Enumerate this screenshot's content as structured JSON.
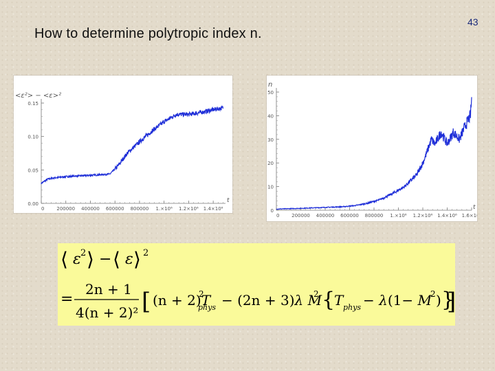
{
  "slide": {
    "title": "How to determine  polytropic index n.",
    "page_number": "43"
  },
  "colors": {
    "background": "#e3dbcb",
    "curve": "#1f2fd8",
    "formula_bg": "#fafa9a",
    "page_number": "#1a2a7a"
  },
  "chart_data": [
    {
      "type": "line",
      "title": "",
      "ylabel": "<ε²> − <ε>²",
      "xlabel": "t",
      "xlim": [
        0,
        1500000
      ],
      "ylim": [
        0,
        0.15
      ],
      "x_tick_labels": [
        "0",
        "200000",
        "400000",
        "600000",
        "800000",
        "1.×10⁶",
        "1.2×10⁶",
        "1.4×10⁶"
      ],
      "y_tick_labels": [
        "0.00",
        "0.05",
        "0.10",
        "0.15"
      ],
      "series": [
        {
          "points": [
            [
              0,
              0.03
            ],
            [
              50000,
              0.036
            ],
            [
              100000,
              0.038
            ],
            [
              200000,
              0.04
            ],
            [
              300000,
              0.041
            ],
            [
              400000,
              0.042
            ],
            [
              500000,
              0.043
            ],
            [
              560000,
              0.044
            ],
            [
              620000,
              0.055
            ],
            [
              700000,
              0.075
            ],
            [
              800000,
              0.092
            ],
            [
              900000,
              0.108
            ],
            [
              1000000,
              0.122
            ],
            [
              1100000,
              0.133
            ],
            [
              1200000,
              0.133
            ],
            [
              1300000,
              0.136
            ],
            [
              1400000,
              0.14
            ],
            [
              1480000,
              0.143
            ]
          ]
        }
      ]
    },
    {
      "type": "line",
      "title": "",
      "ylabel": "n",
      "xlabel": "t",
      "xlim": [
        0,
        1600000
      ],
      "ylim": [
        0,
        50
      ],
      "x_tick_labels": [
        "0",
        "200000",
        "400000",
        "600000",
        "800000",
        "1.×10⁶",
        "1.2×10⁶",
        "1.4×10⁶",
        "1.6×10⁶"
      ],
      "y_tick_labels": [
        "0",
        "10",
        "20",
        "30",
        "40",
        "50"
      ],
      "series": [
        {
          "points": [
            [
              0,
              0.5
            ],
            [
              200000,
              0.8
            ],
            [
              400000,
              1.2
            ],
            [
              550000,
              1.5
            ],
            [
              650000,
              2.0
            ],
            [
              750000,
              3.0
            ],
            [
              850000,
              4.5
            ],
            [
              950000,
              7.0
            ],
            [
              1050000,
              10.0
            ],
            [
              1150000,
              15.0
            ],
            [
              1200000,
              20.0
            ],
            [
              1230000,
              24.0
            ],
            [
              1270000,
              30.0
            ],
            [
              1300000,
              28.0
            ],
            [
              1350000,
              33.0
            ],
            [
              1400000,
              28.0
            ],
            [
              1450000,
              33.0
            ],
            [
              1500000,
              30.0
            ],
            [
              1550000,
              36.0
            ],
            [
              1590000,
              40.0
            ],
            [
              1600000,
              47.0
            ]
          ]
        }
      ]
    }
  ],
  "formula": {
    "lhs_text": "⟨ε²⟩ − ⟨ε⟩²",
    "numerator": "2n + 1",
    "denominator": "4(n + 2)²",
    "rhs_text": "[(n + 2)T²phys − (2n + 3)λM² {Tphys − λ(1 − M²)}]"
  }
}
